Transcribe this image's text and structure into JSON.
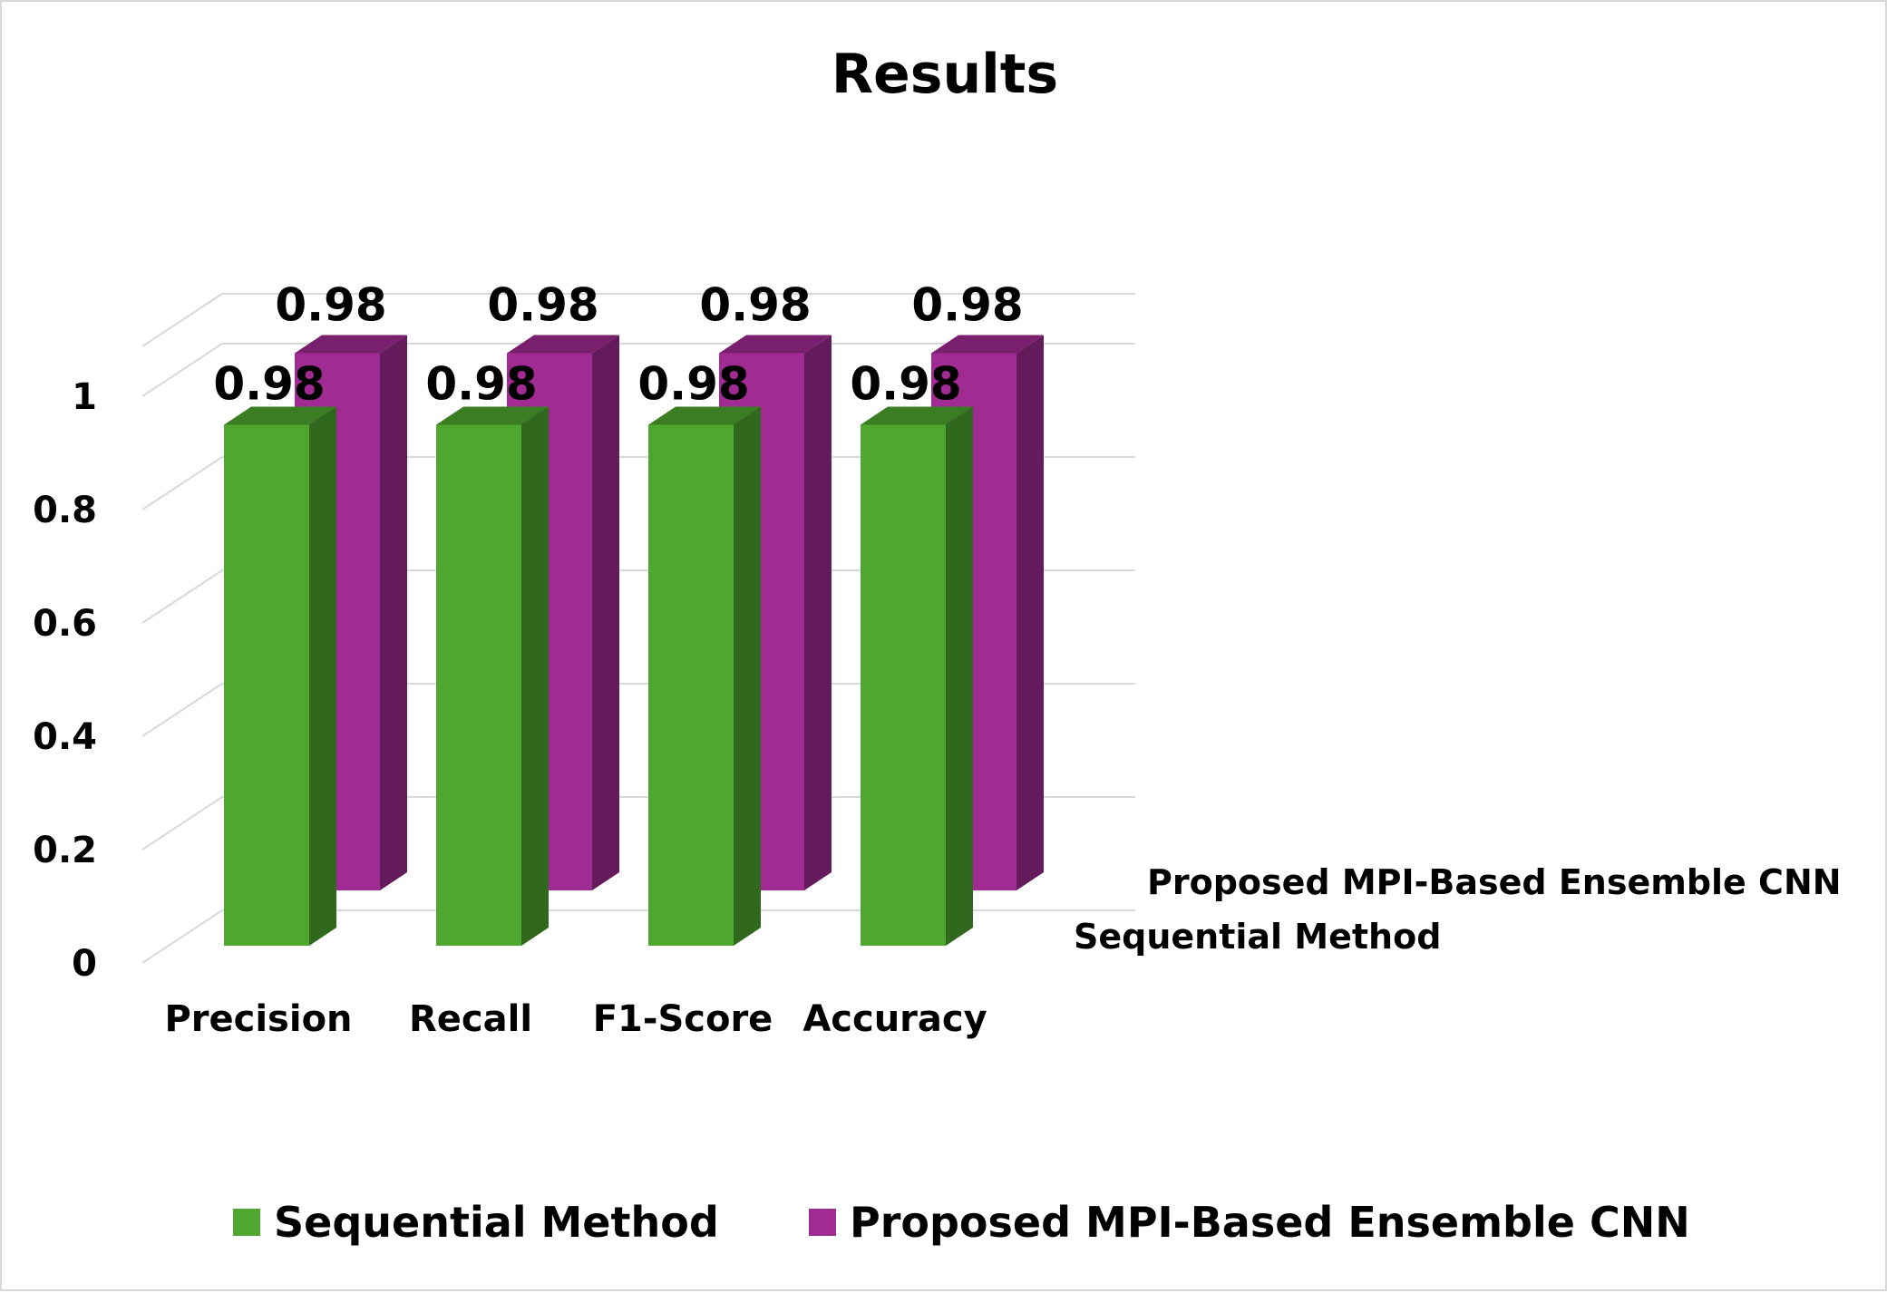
{
  "chart_data": {
    "type": "bar",
    "title": "Results",
    "categories": [
      "Precision",
      "Recall",
      "F1-Score",
      "Accuracy"
    ],
    "series": [
      {
        "name": "Sequential Method",
        "values": [
          0.98,
          0.98,
          0.98,
          0.98
        ],
        "color": "#4ea72e"
      },
      {
        "name": "Proposed MPI-Based Ensemble CNN",
        "values": [
          0.98,
          0.98,
          0.98,
          0.98
        ],
        "color": "#a02b93"
      }
    ],
    "data_labels": [
      "0.98",
      "0.98",
      "0.98",
      "0.98",
      "0.98",
      "0.98",
      "0.98",
      "0.98"
    ],
    "y_ticks": [
      "0",
      "0.2",
      "0.4",
      "0.6",
      "0.8",
      "1"
    ],
    "ylim": [
      0,
      1
    ],
    "grid": true,
    "three_d": true,
    "legend_position": "bottom",
    "depth_axis_labels": [
      "Sequential Method",
      "Proposed MPI-Based Ensemble CNN"
    ]
  }
}
